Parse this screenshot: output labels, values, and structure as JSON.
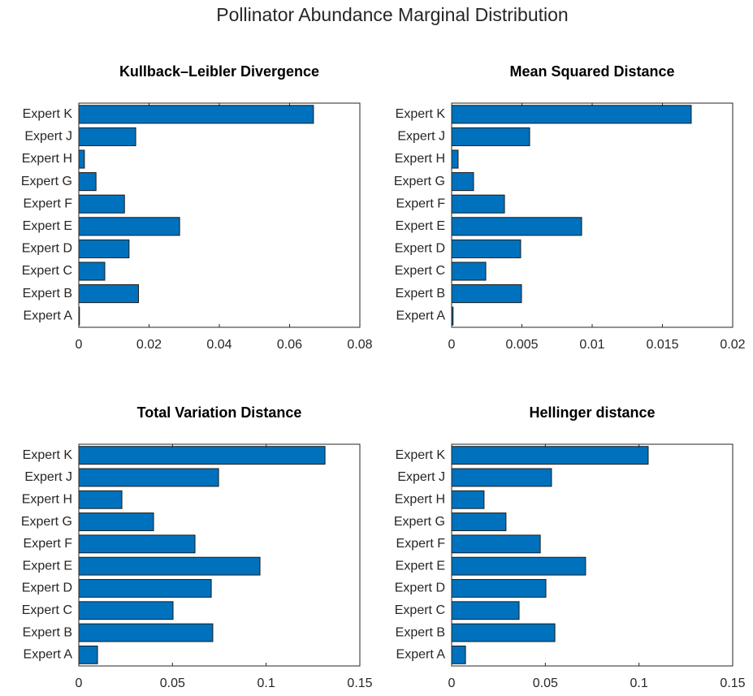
{
  "title": "Pollinator Abundance Marginal Distribution",
  "chart_data": [
    {
      "type": "bar",
      "orientation": "horizontal",
      "title": "Kullback–Leibler Divergence",
      "color": "#0072bd",
      "categories": [
        "Expert A",
        "Expert B",
        "Expert C",
        "Expert D",
        "Expert E",
        "Expert F",
        "Expert G",
        "Expert H",
        "Expert J",
        "Expert K"
      ],
      "values": [
        0,
        0.017,
        0.0074,
        0.0143,
        0.0287,
        0.013,
        0.0049,
        0.0016,
        0.0162,
        0.0668
      ],
      "xlim": [
        0,
        0.08
      ],
      "xticks": [
        0,
        0.02,
        0.04,
        0.06,
        0.08
      ]
    },
    {
      "type": "bar",
      "orientation": "horizontal",
      "title": "Mean Squared Distance",
      "color": "#0072bd",
      "categories": [
        "Expert A",
        "Expert B",
        "Expert C",
        "Expert D",
        "Expert E",
        "Expert F",
        "Expert G",
        "Expert H",
        "Expert J",
        "Expert K"
      ],
      "values": [
        0.0001,
        0.00497,
        0.00243,
        0.00491,
        0.00925,
        0.00376,
        0.00156,
        0.00046,
        0.00555,
        0.01705
      ],
      "xlim": [
        0,
        0.02
      ],
      "xticks": [
        0,
        0.005,
        0.01,
        0.015,
        0.02
      ]
    },
    {
      "type": "bar",
      "orientation": "horizontal",
      "title": "Total Variation Distance",
      "color": "#0072bd",
      "categories": [
        "Expert A",
        "Expert B",
        "Expert C",
        "Expert D",
        "Expert E",
        "Expert F",
        "Expert G",
        "Expert H",
        "Expert J",
        "Expert K"
      ],
      "values": [
        0.01,
        0.0715,
        0.0503,
        0.0707,
        0.0967,
        0.062,
        0.0399,
        0.023,
        0.0746,
        0.1314
      ],
      "xlim": [
        0,
        0.15
      ],
      "xticks": [
        0,
        0.05,
        0.1,
        0.15
      ]
    },
    {
      "type": "bar",
      "orientation": "horizontal",
      "title": "Hellinger distance",
      "color": "#0072bd",
      "categories": [
        "Expert A",
        "Expert B",
        "Expert C",
        "Expert D",
        "Expert E",
        "Expert F",
        "Expert G",
        "Expert H",
        "Expert J",
        "Expert K"
      ],
      "values": [
        0.0074,
        0.0551,
        0.036,
        0.0503,
        0.0715,
        0.0473,
        0.029,
        0.0173,
        0.0533,
        0.1049
      ],
      "xlim": [
        0,
        0.15
      ],
      "xticks": [
        0,
        0.05,
        0.1,
        0.15
      ]
    }
  ]
}
